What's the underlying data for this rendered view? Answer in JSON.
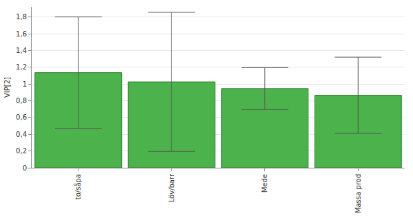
{
  "chart_data": {
    "type": "bar",
    "y_label": "VIP[2]",
    "categories": [
      "to/såpa",
      "Löv/barr",
      "Mede",
      "Massa prod"
    ],
    "values": [
      1.135,
      1.025,
      0.945,
      0.865
    ],
    "error": [
      0.665,
      0.83,
      0.25,
      0.455
    ],
    "color": "#4cb34c",
    "ylim": [
      0,
      1.92
    ],
    "yticks": [
      0,
      {
        "value": 0.2,
        "label": "0,2"
      },
      {
        "value": 0.4,
        "label": "0,4"
      },
      {
        "value": 0.6,
        "label": "0,6"
      },
      {
        "value": 0.8,
        "label": "0,8"
      },
      1,
      {
        "value": 1.2,
        "label": "1,2"
      },
      {
        "value": 1.4,
        "label": "1,4"
      },
      {
        "value": 1.6,
        "label": "1,6"
      },
      {
        "value": 1.8,
        "label": "1,8"
      }
    ],
    "grid": true
  }
}
